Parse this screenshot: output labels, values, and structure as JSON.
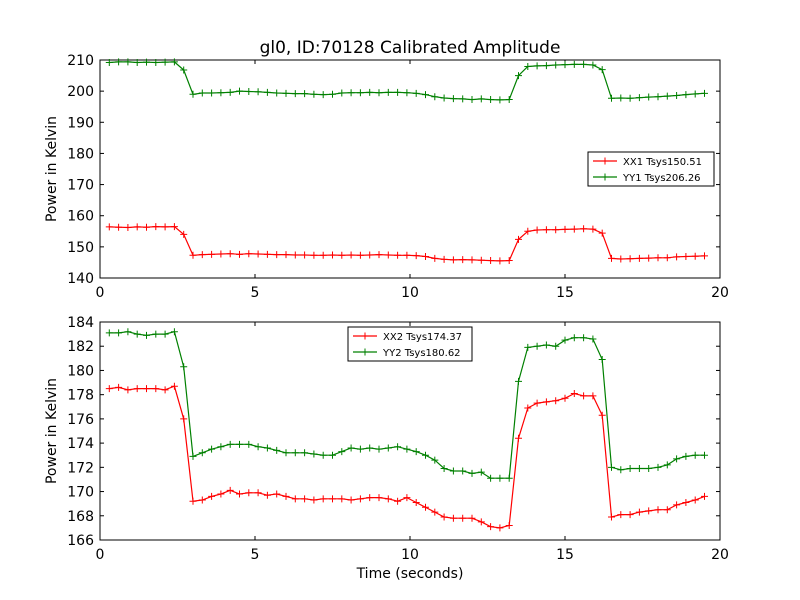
{
  "figure": {
    "title": "gl0, ID:70128 Calibrated Amplitude",
    "xlabel": "Time (seconds)"
  },
  "chart_data": [
    {
      "type": "line",
      "ylabel": "Power in Kelvin",
      "xlabel": "",
      "xlim": [
        0,
        20
      ],
      "ylim": [
        140,
        210
      ],
      "xticks": [
        0,
        5,
        10,
        15,
        20
      ],
      "yticks": [
        140,
        150,
        160,
        170,
        180,
        190,
        200,
        210
      ],
      "grid": false,
      "legend_position": "center-right",
      "x": [
        0.3,
        0.6,
        0.9,
        1.2,
        1.5,
        1.8,
        2.1,
        2.4,
        2.7,
        3.0,
        3.3,
        3.6,
        3.9,
        4.2,
        4.5,
        4.8,
        5.1,
        5.4,
        5.7,
        6.0,
        6.3,
        6.6,
        6.9,
        7.2,
        7.5,
        7.8,
        8.1,
        8.4,
        8.7,
        9.0,
        9.3,
        9.6,
        9.9,
        10.2,
        10.5,
        10.8,
        11.1,
        11.4,
        11.7,
        12.0,
        12.3,
        12.6,
        12.9,
        13.2,
        13.5,
        13.8,
        14.1,
        14.4,
        14.7,
        15.0,
        15.3,
        15.6,
        15.9,
        16.2,
        16.5,
        16.8,
        17.1,
        17.4,
        17.7,
        18.0,
        18.3,
        18.6,
        18.9,
        19.2,
        19.5
      ],
      "series": [
        {
          "name": "XX1 Tsys150.51",
          "color": "#ff0000",
          "values": [
            156.4,
            156.3,
            156.2,
            156.4,
            156.3,
            156.5,
            156.4,
            156.5,
            154.0,
            147.3,
            147.5,
            147.6,
            147.7,
            147.8,
            147.6,
            147.8,
            147.7,
            147.6,
            147.5,
            147.5,
            147.4,
            147.4,
            147.3,
            147.3,
            147.4,
            147.3,
            147.4,
            147.3,
            147.4,
            147.5,
            147.4,
            147.3,
            147.3,
            147.2,
            146.9,
            146.3,
            146.0,
            145.8,
            145.9,
            145.8,
            145.7,
            145.6,
            145.5,
            145.6,
            152.4,
            155.0,
            155.4,
            155.5,
            155.5,
            155.6,
            155.7,
            155.8,
            155.7,
            154.4,
            146.3,
            146.1,
            146.2,
            146.3,
            146.4,
            146.5,
            146.5,
            146.8,
            146.9,
            147.0,
            147.1
          ]
        },
        {
          "name": "YY1 Tsys206.26",
          "color": "#008000",
          "values": [
            209.2,
            209.4,
            209.4,
            209.2,
            209.3,
            209.2,
            209.3,
            209.4,
            206.8,
            199.0,
            199.4,
            199.4,
            199.5,
            199.6,
            200.0,
            199.9,
            199.8,
            199.6,
            199.4,
            199.3,
            199.2,
            199.2,
            199.0,
            198.9,
            199.0,
            199.4,
            199.5,
            199.5,
            199.6,
            199.5,
            199.6,
            199.6,
            199.5,
            199.3,
            198.9,
            198.2,
            197.8,
            197.6,
            197.5,
            197.3,
            197.5,
            197.3,
            197.2,
            197.3,
            205.0,
            207.9,
            208.1,
            208.2,
            208.4,
            208.5,
            208.6,
            208.6,
            208.4,
            206.9,
            197.7,
            197.8,
            197.7,
            197.9,
            198.1,
            198.2,
            198.4,
            198.6,
            198.9,
            199.1,
            199.3
          ]
        }
      ]
    },
    {
      "type": "line",
      "ylabel": "Power in Kelvin",
      "xlabel": "Time (seconds)",
      "xlim": [
        0,
        20
      ],
      "ylim": [
        166,
        184
      ],
      "xticks": [
        0,
        5,
        10,
        15,
        20
      ],
      "yticks": [
        166,
        168,
        170,
        172,
        174,
        176,
        178,
        180,
        182,
        184
      ],
      "grid": false,
      "legend_position": "top-center",
      "x": [
        0.3,
        0.6,
        0.9,
        1.2,
        1.5,
        1.8,
        2.1,
        2.4,
        2.7,
        3.0,
        3.3,
        3.6,
        3.9,
        4.2,
        4.5,
        4.8,
        5.1,
        5.4,
        5.7,
        6.0,
        6.3,
        6.6,
        6.9,
        7.2,
        7.5,
        7.8,
        8.1,
        8.4,
        8.7,
        9.0,
        9.3,
        9.6,
        9.9,
        10.2,
        10.5,
        10.8,
        11.1,
        11.4,
        11.7,
        12.0,
        12.3,
        12.6,
        12.9,
        13.2,
        13.5,
        13.8,
        14.1,
        14.4,
        14.7,
        15.0,
        15.3,
        15.6,
        15.9,
        16.2,
        16.5,
        16.8,
        17.1,
        17.4,
        17.7,
        18.0,
        18.3,
        18.6,
        18.9,
        19.2,
        19.5
      ],
      "series": [
        {
          "name": "XX2 Tsys174.37",
          "color": "#ff0000",
          "values": [
            178.5,
            178.6,
            178.4,
            178.5,
            178.5,
            178.5,
            178.4,
            178.7,
            176.0,
            169.2,
            169.3,
            169.6,
            169.8,
            170.1,
            169.8,
            169.9,
            169.9,
            169.7,
            169.8,
            169.6,
            169.4,
            169.4,
            169.3,
            169.4,
            169.4,
            169.4,
            169.3,
            169.4,
            169.5,
            169.5,
            169.4,
            169.2,
            169.5,
            169.1,
            168.7,
            168.3,
            167.9,
            167.8,
            167.8,
            167.8,
            167.5,
            167.1,
            167.0,
            167.2,
            174.4,
            176.9,
            177.3,
            177.4,
            177.5,
            177.7,
            178.1,
            177.9,
            177.9,
            176.3,
            167.9,
            168.1,
            168.1,
            168.3,
            168.4,
            168.5,
            168.5,
            168.9,
            169.1,
            169.3,
            169.6
          ]
        },
        {
          "name": "YY2 Tsys180.62",
          "color": "#008000",
          "values": [
            183.1,
            183.1,
            183.2,
            183.0,
            182.9,
            183.0,
            183.0,
            183.2,
            180.3,
            172.9,
            173.2,
            173.5,
            173.7,
            173.9,
            173.9,
            173.9,
            173.7,
            173.6,
            173.4,
            173.2,
            173.2,
            173.2,
            173.1,
            173.0,
            173.0,
            173.3,
            173.6,
            173.5,
            173.6,
            173.5,
            173.6,
            173.7,
            173.5,
            173.3,
            173.0,
            172.6,
            171.9,
            171.7,
            171.7,
            171.5,
            171.6,
            171.1,
            171.1,
            171.1,
            179.1,
            181.9,
            182.0,
            182.1,
            182.0,
            182.5,
            182.7,
            182.7,
            182.6,
            180.9,
            172.0,
            171.8,
            171.9,
            171.9,
            171.9,
            172.0,
            172.2,
            172.7,
            172.9,
            173.0,
            173.0
          ]
        }
      ]
    }
  ]
}
